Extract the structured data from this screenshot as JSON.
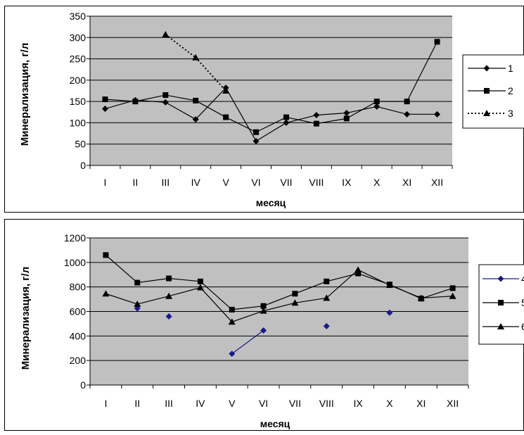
{
  "chart_data": [
    {
      "type": "line",
      "xlabel": "месяц",
      "ylabel": "Минерализация, г/л",
      "categories": [
        "I",
        "II",
        "III",
        "IV",
        "V",
        "VI",
        "VII",
        "VIII",
        "IX",
        "X",
        "XI",
        "XII"
      ],
      "ylim": [
        0,
        350
      ],
      "yticks": [
        0,
        50,
        100,
        150,
        200,
        250,
        300,
        350
      ],
      "grid": true,
      "legend_position": "right",
      "series": [
        {
          "name": "1",
          "marker": "diamond",
          "color": "#000000",
          "dash": "solid",
          "connected": true,
          "values": [
            133,
            153,
            148,
            108,
            182,
            57,
            100,
            118,
            123,
            138,
            120,
            120
          ]
        },
        {
          "name": "2",
          "marker": "square",
          "color": "#000000",
          "dash": "solid",
          "connected": true,
          "values": [
            155,
            150,
            165,
            152,
            113,
            78,
            113,
            98,
            110,
            150,
            150,
            290
          ]
        },
        {
          "name": "3",
          "marker": "triangle",
          "color": "#000000",
          "dash": "dotted",
          "connected": true,
          "values": [
            null,
            null,
            307,
            253,
            175,
            null,
            null,
            null,
            null,
            null,
            null,
            null
          ]
        }
      ]
    },
    {
      "type": "line",
      "xlabel": "месяц",
      "ylabel": "Минерализация, г/л",
      "categories": [
        "I",
        "II",
        "III",
        "IV",
        "V",
        "VI",
        "VII",
        "VIII",
        "IX",
        "X",
        "XI",
        "XII"
      ],
      "ylim": [
        0,
        1200
      ],
      "yticks": [
        0,
        200,
        400,
        600,
        800,
        1000,
        1200
      ],
      "grid": true,
      "legend_position": "right",
      "series": [
        {
          "name": "4",
          "marker": "diamond",
          "color": "#1a1a8c",
          "dash": "solid",
          "connected": false,
          "values": [
            null,
            625,
            560,
            null,
            255,
            445,
            null,
            480,
            null,
            590,
            null,
            null
          ],
          "segments": [
            [
              4,
              5
            ]
          ]
        },
        {
          "name": "5",
          "marker": "square",
          "color": "#000000",
          "dash": "solid",
          "connected": true,
          "values": [
            1060,
            835,
            870,
            845,
            615,
            645,
            745,
            845,
            910,
            820,
            705,
            790
          ]
        },
        {
          "name": "6",
          "marker": "triangle",
          "color": "#000000",
          "dash": "solid",
          "connected": true,
          "values": [
            745,
            660,
            725,
            795,
            515,
            605,
            670,
            710,
            940,
            815,
            710,
            725
          ]
        }
      ]
    }
  ]
}
